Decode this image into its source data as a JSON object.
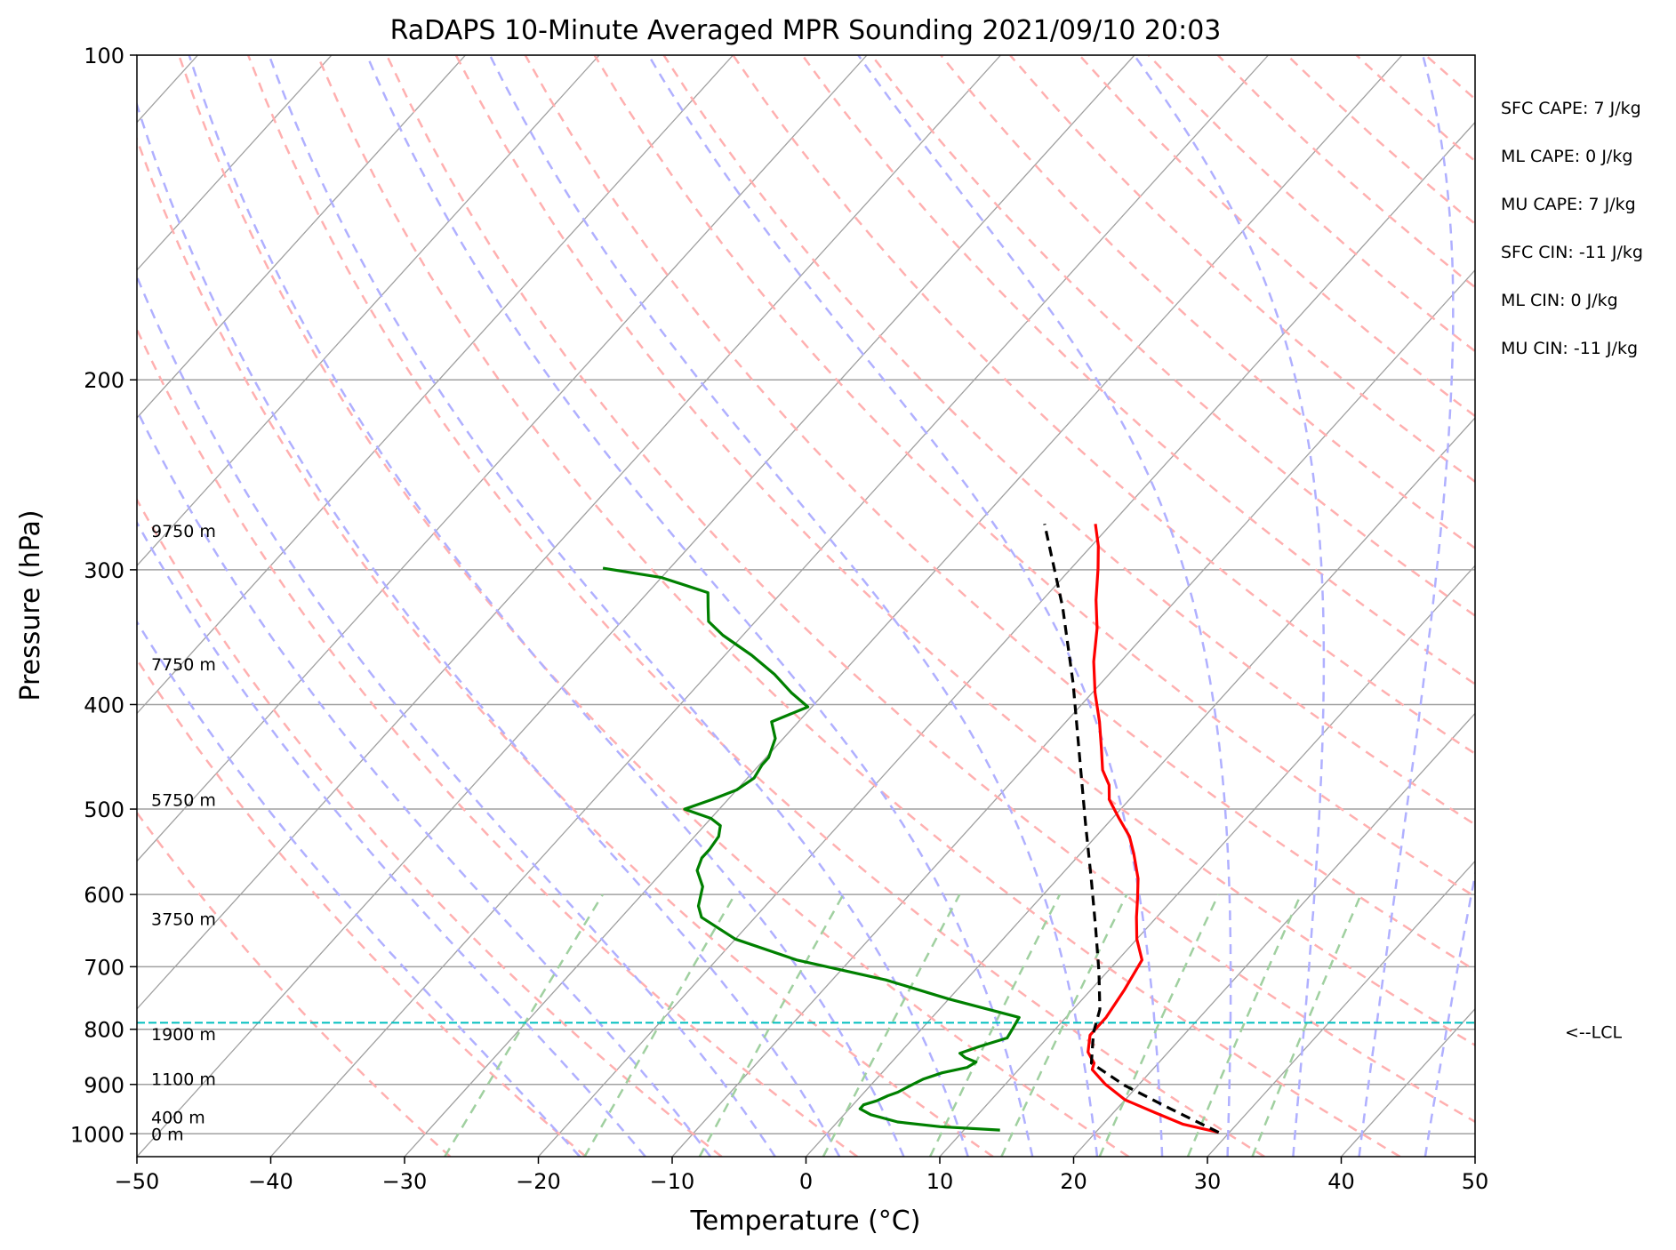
{
  "chart_data": {
    "type": "line",
    "title": "RaDAPS 10-Minute Averaged MPR Sounding 2021/09/10 20:03",
    "xlabel": "Temperature (°C)",
    "ylabel": "Pressure (hPa)",
    "xlim": [
      -50,
      50
    ],
    "ylim": [
      1050,
      100
    ],
    "y_scale": "log",
    "x_ticks": [
      "−50",
      "−40",
      "−30",
      "−20",
      "−10",
      "0",
      "10",
      "20",
      "30",
      "40",
      "50"
    ],
    "y_ticks": [
      "100",
      "200",
      "300",
      "400",
      "500",
      "600",
      "700",
      "800",
      "900",
      "1000"
    ],
    "grid": true,
    "series": [
      {
        "color": "#ff0000",
        "points": [
          [
            29.2,
            997
          ],
          [
            26,
            980
          ],
          [
            23,
            955
          ],
          [
            20,
            930
          ],
          [
            17.5,
            900
          ],
          [
            15.5,
            872
          ],
          [
            15.2,
            860
          ],
          [
            14,
            840
          ],
          [
            13,
            810
          ],
          [
            13,
            780
          ],
          [
            12.5,
            735
          ],
          [
            11.8,
            690
          ],
          [
            10,
            660
          ],
          [
            8.5,
            630
          ],
          [
            7.3,
            605
          ],
          [
            6,
            580
          ],
          [
            4,
            550
          ],
          [
            2.5,
            530
          ],
          [
            0.5,
            510
          ],
          [
            -1.5,
            490
          ],
          [
            -2.5,
            475
          ],
          [
            -4,
            460
          ],
          [
            -5.5,
            440
          ],
          [
            -7.5,
            415
          ],
          [
            -9.8,
            390
          ],
          [
            -12,
            365
          ],
          [
            -14,
            340
          ],
          [
            -16,
            320
          ],
          [
            -18,
            299
          ],
          [
            -19.5,
            285
          ],
          [
            -21.2,
            272
          ]
        ]
      },
      {
        "color": "#008000",
        "points": [
          [
            12.7,
            992
          ],
          [
            8,
            985
          ],
          [
            4.5,
            975
          ],
          [
            2,
            960
          ],
          [
            0.8,
            948
          ],
          [
            0.8,
            940
          ],
          [
            1.5,
            932
          ],
          [
            2,
            922
          ],
          [
            2.5,
            915
          ],
          [
            3,
            902
          ],
          [
            3.5,
            890
          ],
          [
            4.5,
            878
          ],
          [
            6,
            868
          ],
          [
            6.3,
            858
          ],
          [
            5.2,
            850
          ],
          [
            4.5,
            842
          ],
          [
            5.5,
            830
          ],
          [
            7,
            815
          ],
          [
            6.8,
            800
          ],
          [
            6.5,
            780
          ],
          [
            0,
            750
          ],
          [
            -6,
            720
          ],
          [
            -14,
            690
          ],
          [
            -20,
            660
          ],
          [
            -24,
            630
          ],
          [
            -25,
            615
          ],
          [
            -26,
            590
          ],
          [
            -27.5,
            570
          ],
          [
            -28,
            555
          ],
          [
            -28,
            545
          ],
          [
            -28.2,
            530
          ],
          [
            -28.8,
            518
          ],
          [
            -30,
            510
          ],
          [
            -32.6,
            500
          ],
          [
            -31.2,
            490
          ],
          [
            -30,
            480
          ],
          [
            -29.5,
            468
          ],
          [
            -29.8,
            455
          ],
          [
            -29.8,
            448
          ],
          [
            -30.6,
            430
          ],
          [
            -32,
            415
          ],
          [
            -30.3,
            402
          ],
          [
            -32.5,
            390
          ],
          [
            -35,
            375
          ],
          [
            -38,
            360
          ],
          [
            -41.5,
            345
          ],
          [
            -43.5,
            335
          ],
          [
            -44.5,
            325
          ],
          [
            -45.5,
            315
          ],
          [
            -50,
            305
          ],
          [
            -55,
            299
          ]
        ]
      },
      {
        "color": "#000000",
        "dashed": true,
        "points": [
          [
            29.2,
            997
          ],
          [
            24,
            948
          ],
          [
            19,
            902
          ],
          [
            15,
            860
          ],
          [
            13.1,
            806
          ],
          [
            12,
            767
          ],
          [
            9.4,
            708
          ],
          [
            6.2,
            645
          ],
          [
            2.5,
            580
          ],
          [
            -1.7,
            515
          ],
          [
            -6.4,
            450
          ],
          [
            -12.1,
            382
          ],
          [
            -18,
            325
          ],
          [
            -25,
            272
          ]
        ]
      }
    ],
    "lcl": {
      "pressure": 789,
      "label": "<--LCL",
      "color": "#00bfbf"
    },
    "height_labels": [
      {
        "label": "9750 m",
        "p": 276
      },
      {
        "label": "7750 m",
        "p": 367
      },
      {
        "label": "5750 m",
        "p": 490
      },
      {
        "label": "3750 m",
        "p": 632
      },
      {
        "label": "1900 m",
        "p": 808
      },
      {
        "label": "1100 m",
        "p": 889
      },
      {
        "label": "400 m",
        "p": 965
      },
      {
        "label": "0 m",
        "p": 1000
      }
    ],
    "annotations": [
      "SFC CAPE: 7 J/kg",
      "ML CAPE: 0 J/kg",
      "MU CAPE: 7 J/kg",
      "SFC CIN: -11 J/kg",
      "ML CIN: 0 J/kg",
      "MU CIN: -11 J/kg"
    ],
    "reference_lines": {
      "isotherm_color": "#a0a0a0",
      "dry_adiabat_color": "#ffb0b0",
      "moist_adiabat_color": "#b0b0ff",
      "mixing_ratio_color": "#a0d0a0"
    }
  }
}
